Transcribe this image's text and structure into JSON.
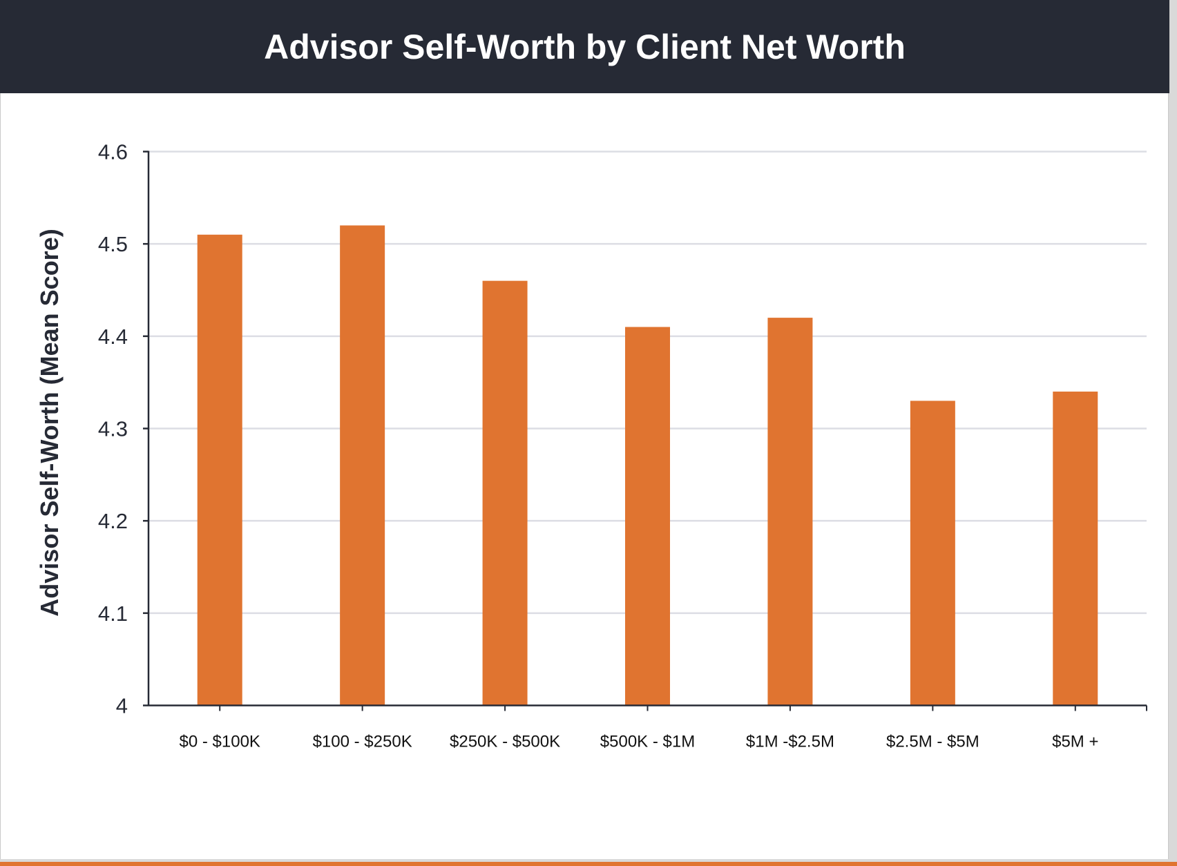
{
  "chart_data": {
    "type": "bar",
    "title": "Advisor Self-Worth by Client Net Worth",
    "xlabel": "",
    "ylabel": "Advisor Self-Worth (Mean Score)",
    "categories": [
      "$0 - $100K",
      "$100 - $250K",
      "$250K - $500K",
      "$500K - $1M",
      "$1M -$2.5M",
      "$2.5M - $5M",
      "$5M +"
    ],
    "values": [
      4.51,
      4.52,
      4.46,
      4.41,
      4.42,
      4.33,
      4.34
    ],
    "ylim": [
      4,
      4.6
    ],
    "yticks": [
      "4",
      "4.1",
      "4.2",
      "4.3",
      "4.4",
      "4.5",
      "4.6"
    ],
    "grid": true,
    "colors": {
      "bar": "#e07430",
      "header": "#262a35",
      "grid": "#dcdde4",
      "axis": "#262a35"
    }
  }
}
